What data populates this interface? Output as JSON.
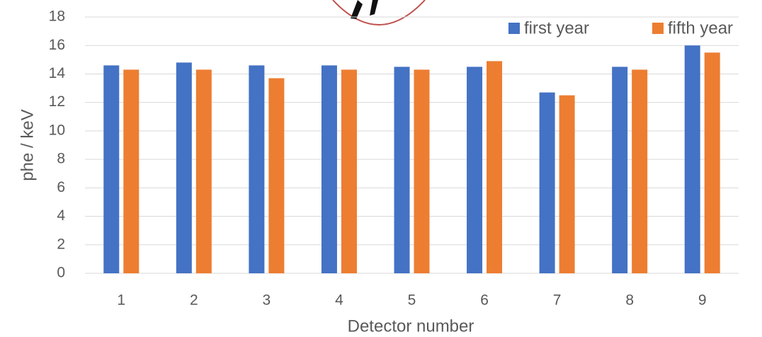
{
  "chart_data": {
    "type": "bar",
    "x_label": "Detector number",
    "y_label": "phe / keV",
    "categories": [
      "1",
      "2",
      "3",
      "4",
      "5",
      "6",
      "7",
      "8",
      "9"
    ],
    "series": [
      {
        "name": "first year",
        "color": "#4472c4",
        "values": [
          14.6,
          14.8,
          14.6,
          14.6,
          14.5,
          14.5,
          12.7,
          14.5,
          16.0
        ]
      },
      {
        "name": "fifth year",
        "color": "#ed7d31",
        "values": [
          14.3,
          14.3,
          13.7,
          14.3,
          14.3,
          14.9,
          12.5,
          14.3,
          15.5
        ]
      }
    ],
    "ylim": [
      0,
      18
    ],
    "yticks": [
      0,
      2,
      4,
      6,
      8,
      10,
      12,
      14,
      16,
      18
    ],
    "grid": true,
    "legend": "upper right"
  }
}
